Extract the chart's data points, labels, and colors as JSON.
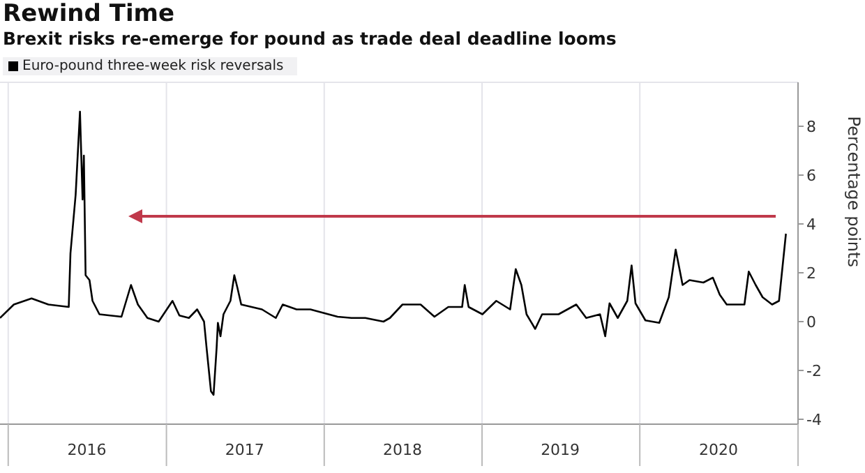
{
  "chart_data": {
    "type": "line",
    "title": "Rewind Time",
    "subtitle": "Brexit risks re-emerge for pound as trade deal deadline looms",
    "ylabel": "Percentage points",
    "x": [
      "2015-12-13",
      "2016-01-14",
      "2016-02-24",
      "2016-04-03",
      "2016-05-20",
      "2016-05-24",
      "2016-06-05",
      "2016-06-15",
      "2016-06-21",
      "2016-06-24",
      "2016-06-28",
      "2016-07-07",
      "2016-07-14",
      "2016-07-30",
      "2016-08-24",
      "2016-09-19",
      "2016-10-11",
      "2016-10-27",
      "2016-11-18",
      "2016-12-14",
      "2017-01-15",
      "2017-01-31",
      "2017-02-22",
      "2017-03-13",
      "2017-03-29",
      "2017-04-04",
      "2017-04-14",
      "2017-04-20",
      "2017-04-27",
      "2017-04-30",
      "2017-05-06",
      "2017-05-13",
      "2017-05-29",
      "2017-06-07",
      "2017-06-14",
      "2017-06-23",
      "2017-08-10",
      "2017-09-11",
      "2017-09-27",
      "2017-10-29",
      "2017-11-30",
      "2018-02-01",
      "2018-03-05",
      "2018-04-06",
      "2018-05-18",
      "2018-06-02",
      "2018-07-01",
      "2018-08-12",
      "2018-09-13",
      "2018-10-15",
      "2018-11-16",
      "2018-11-22",
      "2018-12-01",
      "2019-01-02",
      "2019-02-03",
      "2019-03-07",
      "2019-03-20",
      "2019-04-02",
      "2019-04-14",
      "2019-05-04",
      "2019-05-20",
      "2019-06-27",
      "2019-08-07",
      "2019-08-30",
      "2019-10-01",
      "2019-10-13",
      "2019-10-23",
      "2019-11-11",
      "2019-12-03",
      "2019-12-13",
      "2019-12-22",
      "2020-01-14",
      "2020-02-15",
      "2020-03-08",
      "2020-03-24",
      "2020-04-09",
      "2020-04-25",
      "2020-05-27",
      "2020-06-18",
      "2020-07-04",
      "2020-07-20",
      "2020-08-30",
      "2020-09-09",
      "2020-09-25",
      "2020-10-11",
      "2020-11-02",
      "2020-11-18",
      "2020-12-04"
    ],
    "series": [
      {
        "name": "Euro-pound three-week risk reversals",
        "color": "#000000",
        "values": [
          0.15,
          0.7,
          0.95,
          0.7,
          0.6,
          2.8,
          5.2,
          8.6,
          5.0,
          6.8,
          1.9,
          1.7,
          0.85,
          0.3,
          0.25,
          0.2,
          1.5,
          0.7,
          0.15,
          0.0,
          0.85,
          0.25,
          0.15,
          0.5,
          0.0,
          -1.1,
          -2.85,
          -3.0,
          -1.1,
          -0.05,
          -0.6,
          0.3,
          0.85,
          1.9,
          1.4,
          0.7,
          0.5,
          0.15,
          0.7,
          0.5,
          0.5,
          0.2,
          0.15,
          0.15,
          0.0,
          0.15,
          0.7,
          0.7,
          0.2,
          0.6,
          0.6,
          1.5,
          0.6,
          0.3,
          0.85,
          0.5,
          2.15,
          1.5,
          0.3,
          -0.3,
          0.3,
          0.3,
          0.7,
          0.15,
          0.3,
          -0.6,
          0.75,
          0.15,
          0.85,
          2.3,
          0.75,
          0.05,
          -0.05,
          1.0,
          2.95,
          1.5,
          1.7,
          1.6,
          1.8,
          1.1,
          0.7,
          0.7,
          2.05,
          1.5,
          1.0,
          0.7,
          0.85,
          3.6
        ]
      }
    ],
    "xlim": [
      "2015-12-13",
      "2021-01-01"
    ],
    "xticks": [
      {
        "value": "2016-01-01",
        "label": null
      },
      {
        "value": "2016-07-01",
        "label": "2016"
      },
      {
        "value": "2017-01-01",
        "label": null
      },
      {
        "value": "2017-07-01",
        "label": "2017"
      },
      {
        "value": "2018-01-01",
        "label": null
      },
      {
        "value": "2018-07-01",
        "label": "2018"
      },
      {
        "value": "2019-01-01",
        "label": null
      },
      {
        "value": "2019-07-01",
        "label": "2019"
      },
      {
        "value": "2020-01-01",
        "label": null
      },
      {
        "value": "2020-07-01",
        "label": "2020"
      },
      {
        "value": "2021-01-01",
        "label": null
      }
    ],
    "ylim": [
      -4.2,
      9.8
    ],
    "yticks": [
      -4,
      -2,
      0,
      2,
      4,
      6,
      8
    ],
    "grid": true,
    "legend": "top left",
    "marker": "none",
    "line_style": "solid"
  }
}
